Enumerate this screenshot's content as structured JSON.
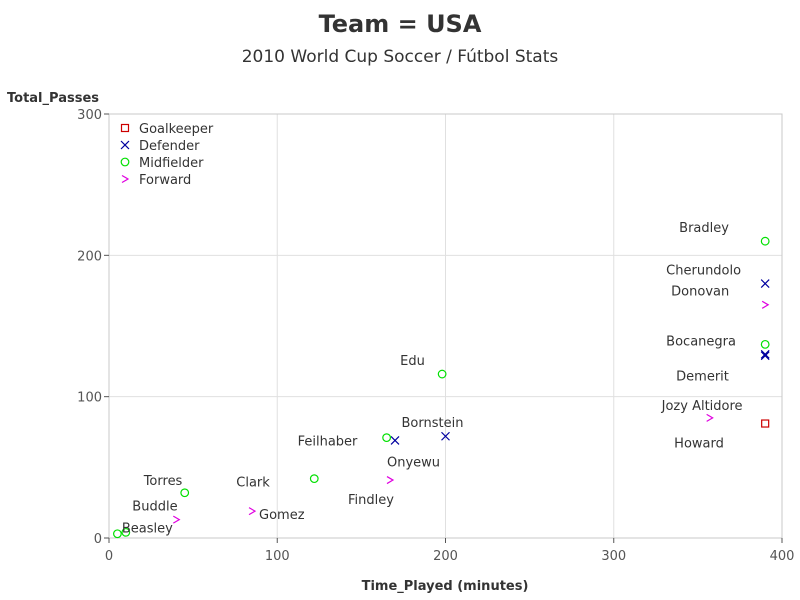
{
  "chart_data": {
    "type": "scatter",
    "title": "Team = USA",
    "subtitle": "2010 World Cup Soccer / Fútbol Stats",
    "xlabel": "Time_Played (minutes)",
    "ylabel": "Total_Passes",
    "xlim": [
      0,
      400
    ],
    "ylim": [
      0,
      300
    ],
    "xticks": [
      0,
      100,
      200,
      300,
      400
    ],
    "yticks": [
      0,
      100,
      200,
      300
    ],
    "grid": true,
    "legend_position": "top-left",
    "series": [
      {
        "name": "Goalkeeper",
        "marker": "square",
        "color": "#cc0000",
        "points": [
          {
            "label": "Howard",
            "x": 390,
            "y": 81
          }
        ]
      },
      {
        "name": "Defender",
        "marker": "x",
        "color": "#00009f",
        "points": [
          {
            "label": "Cherundolo",
            "x": 390,
            "y": 180
          },
          {
            "label": "Bocanegra",
            "x": 390,
            "y": 130
          },
          {
            "label": "Demerit",
            "x": 390,
            "y": 129
          },
          {
            "label": "Bornstein",
            "x": 200,
            "y": 72
          },
          {
            "label": "Onyewu",
            "x": 170,
            "y": 69
          }
        ]
      },
      {
        "name": "Midfielder",
        "marker": "circle",
        "color": "#00e000",
        "points": [
          {
            "label": "Bradley",
            "x": 390,
            "y": 210
          },
          {
            "label": "Donovan",
            "x": 390,
            "y": 137
          },
          {
            "label": "Edu",
            "x": 198,
            "y": 116
          },
          {
            "label": "Feilhaber",
            "x": 165,
            "y": 71
          },
          {
            "label": "Clark",
            "x": 122,
            "y": 42
          },
          {
            "label": "Torres",
            "x": 45,
            "y": 32
          },
          {
            "label": "Beasley",
            "x": 10,
            "y": 4
          },
          {
            "label": "",
            "x": 5,
            "y": 3
          }
        ]
      },
      {
        "name": "Forward",
        "marker": "gt",
        "color": "#e000e0",
        "points": [
          {
            "label": "",
            "x": 390,
            "y": 165
          },
          {
            "label": "Jozy Altidore",
            "x": 357,
            "y": 85
          },
          {
            "label": "Findley",
            "x": 167,
            "y": 41
          },
          {
            "label": "Gomez",
            "x": 85,
            "y": 19
          },
          {
            "label": "Buddle",
            "x": 40,
            "y": 13
          }
        ]
      }
    ]
  }
}
